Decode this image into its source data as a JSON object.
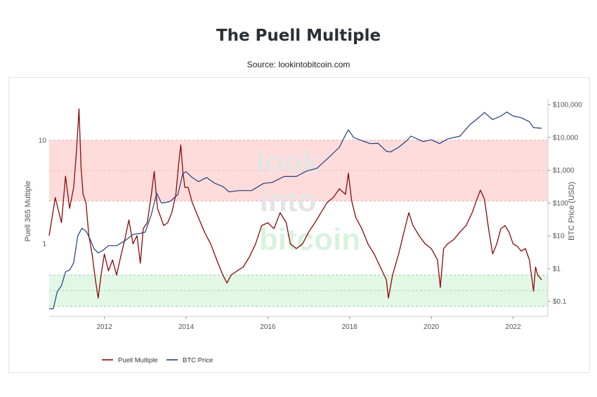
{
  "page": {
    "title": "The Puell Multiple",
    "subtitle": "Source: lookintobitcoin.com"
  },
  "watermark": [
    "look",
    "into",
    "bitcoin"
  ],
  "chart_data": {
    "type": "line",
    "title": "The Puell Multiple",
    "subtitle": "Source: lookintobitcoin.com",
    "xlabel": "",
    "y_left_label": "Puell 365 Multiple",
    "y_right_label": "BTC Price (USD)",
    "x_range": [
      2010.65,
      2022.85
    ],
    "x_ticks": [
      2012,
      2014,
      2016,
      2018,
      2020,
      2022
    ],
    "x_tick_labels": [
      "2012",
      "2014",
      "2016",
      "2018",
      "2020",
      "2022"
    ],
    "y_left": {
      "scale": "log",
      "range": [
        0.2,
        25
      ],
      "ticks": [
        1,
        10
      ],
      "tick_labels": [
        "1",
        "10"
      ]
    },
    "y_right": {
      "scale": "log",
      "range": [
        0.035,
        150000
      ],
      "ticks": [
        0.1,
        1,
        10,
        100,
        1000,
        10000,
        100000
      ],
      "tick_labels": [
        "$0.1",
        "$1",
        "$10",
        "$100",
        "$1,000",
        "$10,000",
        "$100,000"
      ]
    },
    "bands": [
      {
        "name": "high",
        "from": 2.6,
        "to": 10,
        "color": "#ffdcdc",
        "border": "#f4a5a5"
      },
      {
        "name": "low",
        "from": 0.25,
        "to": 0.5,
        "color": "#e3f7e6",
        "border": "#8fd39a"
      }
    ],
    "legend_position": "bottom-left",
    "series": [
      {
        "name": "Puell Multiple",
        "axis": "left",
        "color": "#8b0a0a",
        "x": [
          2010.65,
          2010.8,
          2010.95,
          2011.05,
          2011.15,
          2011.25,
          2011.32,
          2011.38,
          2011.43,
          2011.48,
          2011.55,
          2011.62,
          2011.7,
          2011.78,
          2011.85,
          2011.92,
          2012.0,
          2012.1,
          2012.2,
          2012.3,
          2012.4,
          2012.5,
          2012.6,
          2012.7,
          2012.8,
          2012.88,
          2012.95,
          2013.05,
          2013.15,
          2013.22,
          2013.3,
          2013.38,
          2013.45,
          2013.55,
          2013.65,
          2013.75,
          2013.82,
          2013.87,
          2013.92,
          2013.97,
          2014.05,
          2014.15,
          2014.3,
          2014.45,
          2014.6,
          2014.75,
          2014.9,
          2015.0,
          2015.1,
          2015.25,
          2015.4,
          2015.55,
          2015.7,
          2015.85,
          2016.0,
          2016.15,
          2016.3,
          2016.45,
          2016.55,
          2016.7,
          2016.85,
          2017.0,
          2017.15,
          2017.3,
          2017.45,
          2017.6,
          2017.75,
          2017.9,
          2017.97,
          2018.05,
          2018.15,
          2018.3,
          2018.45,
          2018.6,
          2018.75,
          2018.9,
          2018.95,
          2019.05,
          2019.2,
          2019.35,
          2019.45,
          2019.55,
          2019.7,
          2019.85,
          2020.0,
          2020.15,
          2020.22,
          2020.3,
          2020.4,
          2020.55,
          2020.7,
          2020.85,
          2021.0,
          2021.1,
          2021.2,
          2021.3,
          2021.4,
          2021.5,
          2021.6,
          2021.7,
          2021.8,
          2021.9,
          2022.0,
          2022.1,
          2022.2,
          2022.3,
          2022.4,
          2022.5,
          2022.55,
          2022.6,
          2022.7
        ],
        "values": [
          1.2,
          2.8,
          1.6,
          4.5,
          2.2,
          3.5,
          8.0,
          20.0,
          5.5,
          3.0,
          2.5,
          1.2,
          0.8,
          0.45,
          0.3,
          0.5,
          0.8,
          0.55,
          0.7,
          0.5,
          0.75,
          1.1,
          1.7,
          1.0,
          1.2,
          0.65,
          1.4,
          1.6,
          3.0,
          5.0,
          2.2,
          1.8,
          1.5,
          1.6,
          2.0,
          3.0,
          6.0,
          9.0,
          5.0,
          3.5,
          3.5,
          2.5,
          1.8,
          1.3,
          1.0,
          0.7,
          0.5,
          0.42,
          0.5,
          0.55,
          0.6,
          0.75,
          1.0,
          1.5,
          1.6,
          1.4,
          2.0,
          1.6,
          1.0,
          0.9,
          1.0,
          1.3,
          1.6,
          2.0,
          2.5,
          2.8,
          3.4,
          3.0,
          4.8,
          2.6,
          1.8,
          1.4,
          1.0,
          0.8,
          0.6,
          0.45,
          0.3,
          0.5,
          0.8,
          1.4,
          2.0,
          1.5,
          1.2,
          1.0,
          0.9,
          0.7,
          0.38,
          0.9,
          1.0,
          1.1,
          1.3,
          1.5,
          2.0,
          2.6,
          3.3,
          2.7,
          1.4,
          0.8,
          1.0,
          1.4,
          1.5,
          1.3,
          1.0,
          0.95,
          0.85,
          0.9,
          0.7,
          0.35,
          0.6,
          0.5,
          0.45
        ]
      },
      {
        "name": "BTC Price",
        "axis": "right",
        "color": "#1f3f77",
        "x": [
          2010.65,
          2010.75,
          2010.85,
          2010.95,
          2011.05,
          2011.15,
          2011.25,
          2011.35,
          2011.45,
          2011.55,
          2011.65,
          2011.75,
          2011.85,
          2011.95,
          2012.1,
          2012.3,
          2012.5,
          2012.7,
          2012.9,
          2013.0,
          2013.15,
          2013.28,
          2013.4,
          2013.6,
          2013.8,
          2013.92,
          2014.0,
          2014.15,
          2014.3,
          2014.5,
          2014.7,
          2014.9,
          2015.05,
          2015.3,
          2015.6,
          2015.9,
          2016.1,
          2016.4,
          2016.7,
          2016.95,
          2017.2,
          2017.5,
          2017.75,
          2017.9,
          2017.97,
          2018.1,
          2018.3,
          2018.5,
          2018.7,
          2018.9,
          2019.0,
          2019.2,
          2019.4,
          2019.5,
          2019.8,
          2020.0,
          2020.2,
          2020.4,
          2020.7,
          2020.95,
          2021.1,
          2021.3,
          2021.5,
          2021.7,
          2021.85,
          2022.0,
          2022.2,
          2022.4,
          2022.5,
          2022.7
        ],
        "values": [
          0.06,
          0.06,
          0.2,
          0.3,
          0.8,
          0.9,
          1.5,
          10,
          17,
          14,
          8,
          4,
          3,
          3.5,
          5,
          5,
          7,
          11,
          12,
          13,
          45,
          200,
          100,
          110,
          180,
          800,
          900,
          600,
          450,
          600,
          400,
          320,
          220,
          240,
          240,
          400,
          420,
          650,
          650,
          950,
          1150,
          2500,
          5000,
          12000,
          17000,
          10000,
          8000,
          6500,
          6600,
          3800,
          3600,
          5000,
          8000,
          11000,
          7500,
          8500,
          6500,
          9000,
          11000,
          25000,
          35000,
          58000,
          35000,
          45000,
          60000,
          45000,
          40000,
          30000,
          20000,
          19000
        ]
      }
    ]
  }
}
